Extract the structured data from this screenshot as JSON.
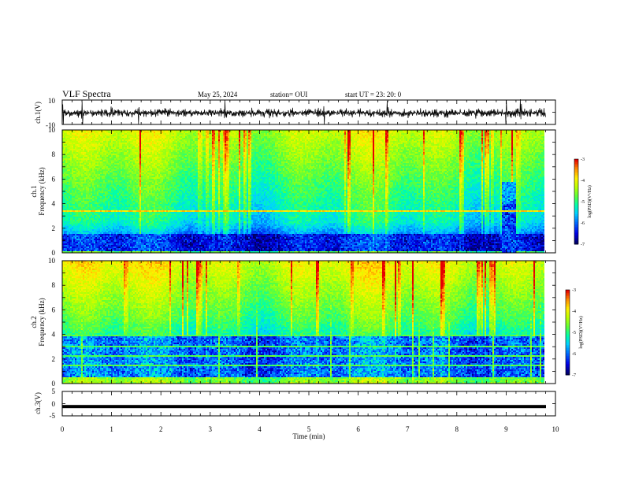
{
  "header": {
    "title": "VLF Spectra",
    "date": "May 25, 2024",
    "station": "station= OUI",
    "start": "start  UT  =   23: 20: 0"
  },
  "chart_data": [
    {
      "type": "line",
      "name": "ch.1 waveform",
      "ylabel": "ch.1(V)",
      "ylim": [
        -10,
        10
      ],
      "yticks": [
        "10",
        "-10"
      ],
      "xlim": [
        0,
        10
      ],
      "baseline": 0,
      "amplitude_note": "noisy trace around 0 V with spikes near 0.0, 0.4, 1.0, 2.5, 4.2, 5.2, 6.6, 9.0 min"
    },
    {
      "type": "heatmap",
      "name": "ch.1 spectrogram",
      "ylabel": "ch.1 Frequency (kHz)",
      "ylim": [
        0,
        10
      ],
      "yticks": [
        "0",
        "2",
        "4",
        "6",
        "8",
        "10"
      ],
      "xlim": [
        0,
        9.8
      ],
      "colorbar": {
        "label": "log(PSD)(V²/Hz)",
        "range": [
          -7,
          -3
        ],
        "ticks": [
          "-3",
          "-4",
          "-5",
          "-6",
          "-7"
        ]
      },
      "features": {
        "horizontal_line_khz": 3.45,
        "dark_band_khz": [
          0.2,
          1.5
        ],
        "bright_event_minutes": [
          8.9,
          9.2
        ],
        "bright_event_khz": [
          0,
          5.8
        ]
      }
    },
    {
      "type": "heatmap",
      "name": "ch.2 spectrogram",
      "ylabel": "ch.2 Frequency (kHz)",
      "ylim": [
        0,
        10
      ],
      "yticks": [
        "0",
        "2",
        "4",
        "6",
        "8",
        "10"
      ],
      "xlim": [
        0,
        9.8
      ],
      "colorbar": {
        "label": "log(PSD)(V²/Hz)",
        "range": [
          -7,
          -3
        ],
        "ticks": [
          "-3",
          "-4",
          "-5",
          "-6",
          "-7"
        ]
      },
      "features": {
        "dark_band_khz": [
          0.5,
          3.5
        ],
        "horizontal_lines_khz": [
          3.9,
          3.0,
          2.2,
          1.5
        ]
      }
    },
    {
      "type": "line",
      "name": "ch.3 waveform",
      "ylabel": "ch.3(V)",
      "ylim": [
        -5,
        5
      ],
      "yticks": [
        "5",
        "0",
        "-5"
      ],
      "xlim": [
        0,
        10
      ],
      "constant_value": -1.2
    }
  ],
  "xaxis": {
    "label": "Time  (min)",
    "ticks": [
      "0",
      "1",
      "2",
      "3",
      "4",
      "5",
      "6",
      "7",
      "8",
      "9",
      "10"
    ],
    "range": [
      0,
      10
    ]
  },
  "colors": {
    "palette": [
      "#00007f",
      "#0000ff",
      "#0080ff",
      "#00d0ff",
      "#00ffa0",
      "#60ff40",
      "#c0ff00",
      "#ffff00",
      "#ff9000",
      "#ff0000"
    ],
    "line": "#000000"
  }
}
